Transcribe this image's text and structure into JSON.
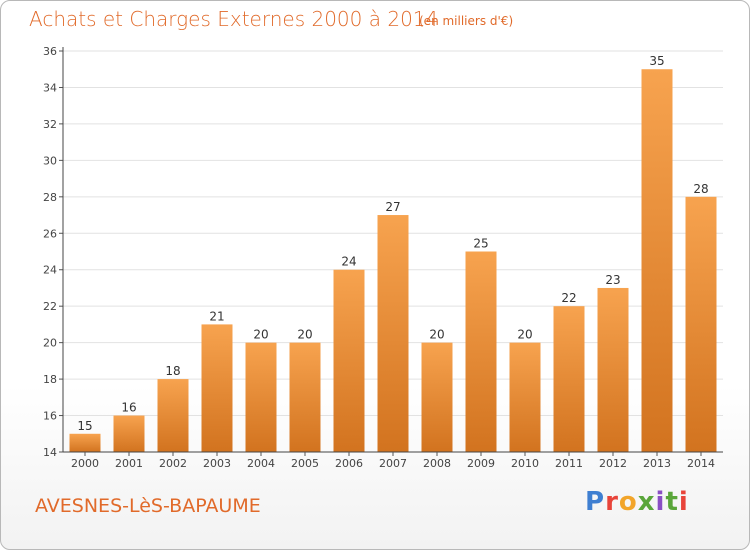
{
  "header": {
    "title": "Achats et Charges Externes 2000 à 2014",
    "unit": "(en milliers d'€)"
  },
  "footer": {
    "commune": "AVESNES-LèS-BAPAUME",
    "logo": "Proxiti"
  },
  "colors": {
    "accent": "#e16a2a",
    "bar_light": "#f7a34f",
    "bar_dark": "#d2731f"
  },
  "chart_data": {
    "type": "bar",
    "title": "Achats et Charges Externes 2000 à 2014",
    "subtitle": "(en milliers d'€)",
    "categories": [
      "2000",
      "2001",
      "2002",
      "2003",
      "2004",
      "2005",
      "2006",
      "2007",
      "2008",
      "2009",
      "2010",
      "2011",
      "2012",
      "2013",
      "2014"
    ],
    "values": [
      15,
      16,
      18,
      21,
      20,
      20,
      24,
      27,
      20,
      25,
      20,
      22,
      23,
      35,
      28
    ],
    "ylim": [
      14,
      36
    ],
    "yticks": [
      14,
      16,
      18,
      20,
      22,
      24,
      26,
      28,
      30,
      32,
      34,
      36
    ],
    "grid": true,
    "legend": "none"
  }
}
